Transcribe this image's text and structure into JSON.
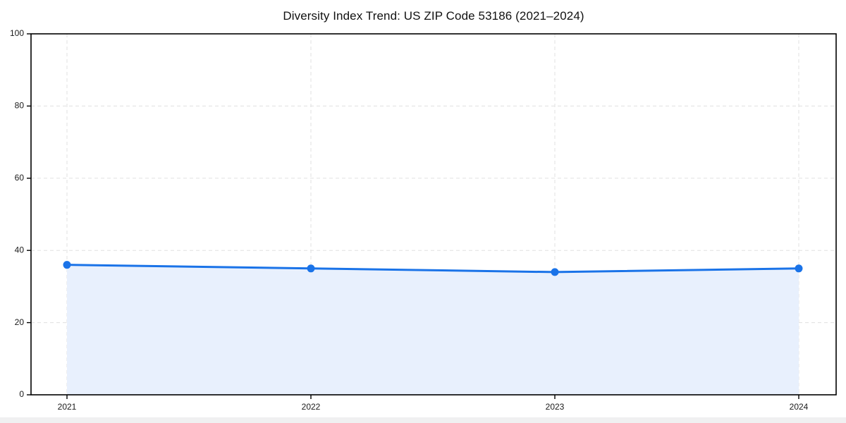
{
  "chart_data": {
    "type": "area",
    "title": "Diversity Index Trend: US ZIP Code 53186 (2021–2024)",
    "categories": [
      "2021",
      "2022",
      "2023",
      "2024"
    ],
    "values": [
      36,
      35,
      34,
      35
    ],
    "xlabel": "",
    "ylabel": "",
    "ylim": [
      0,
      100
    ],
    "yticks": [
      0,
      20,
      40,
      60,
      80,
      100
    ],
    "grid": true,
    "grid_style": "dashed",
    "legend_position": "none",
    "colors": {
      "line": "#1a73e8",
      "marker": "#1a73e8",
      "fill": "#e8f0fd",
      "grid": "#e0e0e0",
      "spine": "#000000",
      "tick_label": "#1a1a1a",
      "title": "#111111",
      "background": "#ffffff"
    }
  }
}
